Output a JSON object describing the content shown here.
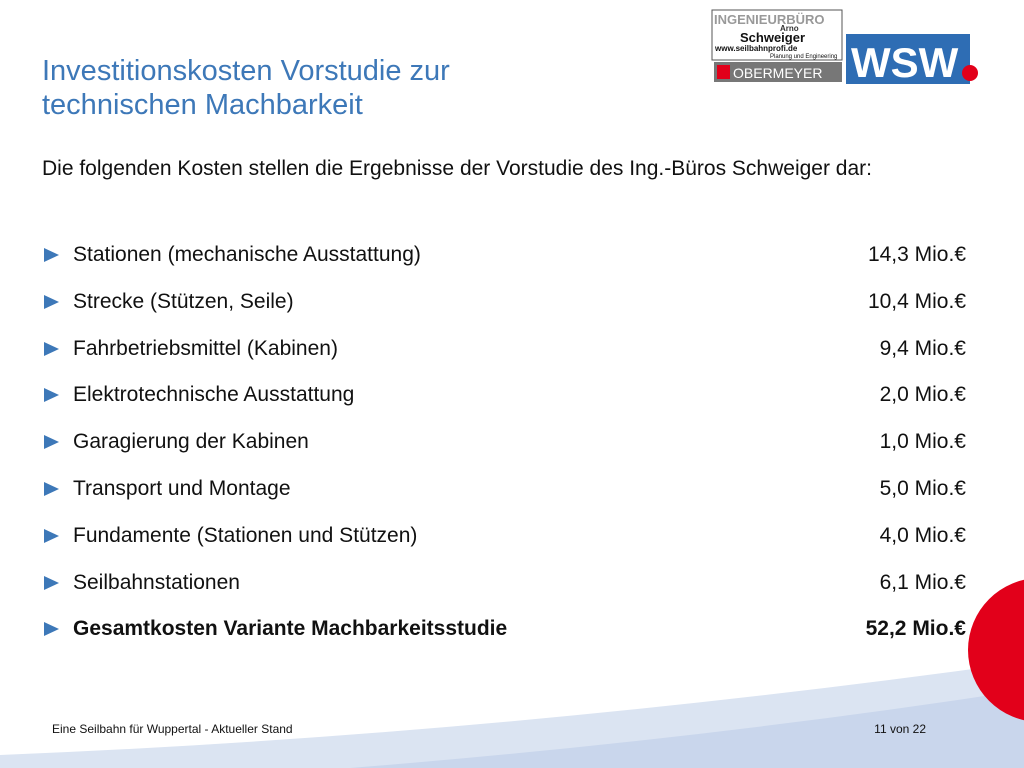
{
  "header": {
    "title_lines": [
      "Investitionskosten Vorstudie zur",
      "technischen Machbarkeit"
    ]
  },
  "logos": {
    "ib_top": "INGENIEURBÜRO",
    "ib_first": "Arno",
    "ib_name": "Schweiger",
    "ib_url": "www.seilbahnprofi.de",
    "ib_sub": "Planung und Engineering",
    "obermeyer": "OBERMEYER",
    "wsw": "WSW"
  },
  "intro": "Die folgenden Kosten stellen die Ergebnisse der Vorstudie des Ing.-Büros Schweiger dar:",
  "items": [
    {
      "label": "Stationen (mechanische Ausstattung)",
      "amount": "14,3 Mio.€"
    },
    {
      "label": "Strecke (Stützen, Seile)",
      "amount": "10,4 Mio.€"
    },
    {
      "label": "Fahrbetriebsmittel (Kabinen)",
      "amount": "9,4 Mio.€"
    },
    {
      "label": "Elektrotechnische Ausstattung",
      "amount": "2,0 Mio.€"
    },
    {
      "label": "Garagierung der Kabinen",
      "amount": "1,0 Mio.€"
    },
    {
      "label": "Transport und Montage",
      "amount": "5,0 Mio.€"
    },
    {
      "label": "Fundamente (Stationen und Stützen)",
      "amount": "4,0 Mio.€"
    },
    {
      "label": "Seilbahnstationen",
      "amount": "6,1 Mio.€"
    },
    {
      "label": "Gesamtkosten Variante Machbarkeitsstudie",
      "amount": "52,2 Mio.€"
    }
  ],
  "footer": {
    "left": "Eine Seilbahn für Wuppertal - Aktueller Stand",
    "right": "11 von 22"
  }
}
